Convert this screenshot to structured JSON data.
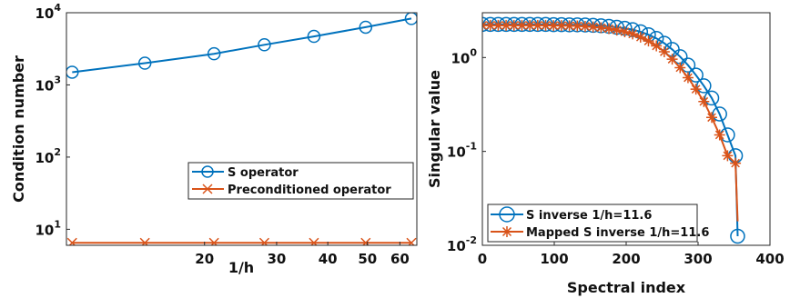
{
  "chart_data": [
    {
      "type": "line",
      "xlabel": "1/h",
      "ylabel": "Condition number",
      "xscale": "log",
      "yscale": "log",
      "xlim": [
        9.2,
        66
      ],
      "ylim": [
        6,
        10000
      ],
      "xticks": [
        20,
        30,
        40,
        50,
        60
      ],
      "yticks": [
        {
          "value": 10,
          "base": "10",
          "exp": "1"
        },
        {
          "value": 100,
          "base": "10",
          "exp": "2"
        },
        {
          "value": 1000,
          "base": "10",
          "exp": "3"
        },
        {
          "value": 10000,
          "base": "10",
          "exp": "4"
        }
      ],
      "grid": false,
      "legend_position": "lower-right",
      "series": [
        {
          "name": "S operator",
          "color": "#0072BD",
          "marker": "circle",
          "x": [
            9.5,
            14.3,
            21.1,
            28,
            37,
            49.5,
            64
          ],
          "y": [
            1500,
            2000,
            2700,
            3600,
            4700,
            6300,
            8300
          ]
        },
        {
          "name": "Preconditioned operator",
          "color": "#D95319",
          "marker": "x",
          "x": [
            9.5,
            14.3,
            21.1,
            28,
            37,
            49.5,
            64
          ],
          "y": [
            6.5,
            6.5,
            6.5,
            6.5,
            6.5,
            6.5,
            6.5
          ]
        }
      ]
    },
    {
      "type": "line",
      "xlabel": "Spectral index",
      "ylabel": "Singular value",
      "xscale": "linear",
      "yscale": "log",
      "xlim": [
        0,
        400
      ],
      "ylim": [
        0.01,
        3
      ],
      "xticks": [
        0,
        100,
        200,
        300,
        400
      ],
      "yticks": [
        {
          "value": 0.01,
          "base": "10",
          "exp": "-2"
        },
        {
          "value": 0.1,
          "base": "10",
          "exp": "-1"
        },
        {
          "value": 1,
          "base": "10",
          "exp": "0"
        }
      ],
      "grid": false,
      "legend_position": "lower-left",
      "series": [
        {
          "name": "S inverse 1/h=11.6",
          "color": "#0072BD",
          "marker": "circle",
          "x": [
            0,
            11,
            22,
            33,
            44,
            55,
            66,
            77,
            88,
            99,
            110,
            121,
            132,
            143,
            154,
            165,
            176,
            187,
            198,
            209,
            220,
            231,
            242,
            253,
            264,
            275,
            286,
            297,
            308,
            319,
            330,
            341,
            352,
            355
          ],
          "y": [
            2.25,
            2.25,
            2.25,
            2.25,
            2.25,
            2.25,
            2.25,
            2.25,
            2.25,
            2.24,
            2.24,
            2.23,
            2.23,
            2.22,
            2.2,
            2.18,
            2.15,
            2.1,
            2.05,
            1.98,
            1.88,
            1.75,
            1.6,
            1.42,
            1.22,
            1.02,
            0.83,
            0.65,
            0.5,
            0.37,
            0.25,
            0.15,
            0.09,
            0.0125
          ]
        },
        {
          "name": "Mapped S inverse 1/h=11.6",
          "color": "#D95319",
          "marker": "star",
          "x": [
            0,
            11,
            22,
            33,
            44,
            55,
            66,
            77,
            88,
            99,
            110,
            121,
            132,
            143,
            154,
            165,
            176,
            187,
            198,
            209,
            220,
            231,
            242,
            253,
            264,
            275,
            286,
            297,
            308,
            319,
            330,
            341,
            352,
            355
          ],
          "y": [
            2.2,
            2.2,
            2.2,
            2.2,
            2.2,
            2.2,
            2.2,
            2.2,
            2.2,
            2.19,
            2.19,
            2.18,
            2.17,
            2.15,
            2.12,
            2.08,
            2.03,
            1.96,
            1.88,
            1.78,
            1.65,
            1.5,
            1.33,
            1.15,
            0.96,
            0.78,
            0.61,
            0.46,
            0.34,
            0.23,
            0.15,
            0.09,
            0.075,
            0.018
          ]
        }
      ]
    }
  ]
}
